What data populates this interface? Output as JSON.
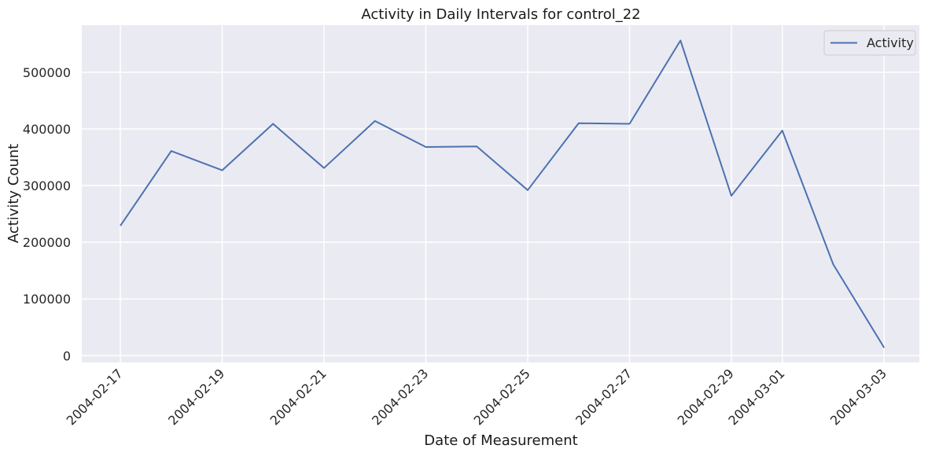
{
  "chart_data": {
    "type": "line",
    "title": "Activity in Daily Intervals for control_22",
    "xlabel": "Date of Measurement",
    "ylabel": "Activity Count",
    "x": [
      "2004-02-17",
      "2004-02-18",
      "2004-02-19",
      "2004-02-20",
      "2004-02-21",
      "2004-02-22",
      "2004-02-23",
      "2004-02-24",
      "2004-02-25",
      "2004-02-26",
      "2004-02-27",
      "2004-02-28",
      "2004-02-29",
      "2004-03-01",
      "2004-03-02",
      "2004-03-03"
    ],
    "series": [
      {
        "name": "Activity",
        "color": "#4c72b0",
        "values": [
          229000,
          361000,
          327000,
          409000,
          331000,
          414000,
          368000,
          369000,
          292000,
          410000,
          409000,
          556000,
          282000,
          397000,
          161000,
          14000
        ]
      }
    ],
    "xticks": [
      "2004-02-17",
      "2004-02-19",
      "2004-02-21",
      "2004-02-23",
      "2004-02-25",
      "2004-02-27",
      "2004-02-29",
      "2004-03-01",
      "2004-03-03"
    ],
    "yticks": [
      0,
      100000,
      200000,
      300000,
      400000,
      500000
    ],
    "ylim": [
      -12000,
      583000
    ],
    "grid": true,
    "legend_position": "top-right",
    "background_color": "#eaeaf2",
    "grid_color": "#ffffff"
  }
}
